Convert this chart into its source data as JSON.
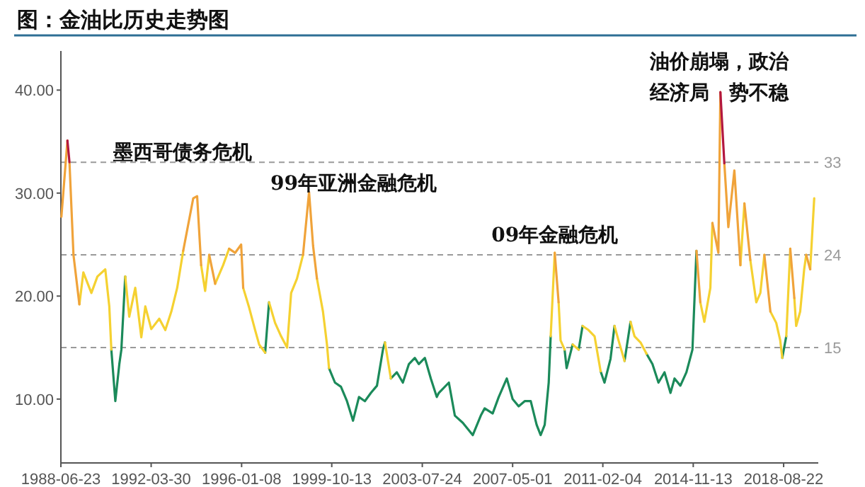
{
  "chart_data": {
    "type": "line",
    "title": "图：金油比历史走势图",
    "annotations": [
      "墨西哥债务危机",
      "99年亚洲金融危机",
      {
        "text": "09年金融危机",
        "x": "2009-02",
        "y": 24.2
      },
      {
        "text": "油价崩塌，政治经济局势不稳",
        "x": "2016-01",
        "y": 39.8
      }
    ],
    "xlim": [
      "1988-06-23",
      "2020-02-01"
    ],
    "xticks": [
      "1988-06-23",
      "1992-03-30",
      "1996-01-08",
      "1999-10-13",
      "2003-07-24",
      "2007-05-01",
      "2011-02-04",
      "2014-11-13",
      "2018-08-22"
    ],
    "ylim": [
      3.8,
      43.8
    ],
    "yticks": [
      {
        "value": 10,
        "label": "10.00"
      },
      {
        "value": 20,
        "label": "20.00"
      },
      {
        "value": 30,
        "label": "30.00"
      },
      {
        "value": 40,
        "label": "40.00"
      }
    ],
    "ref_lines": [
      {
        "axis": "y",
        "value": 33,
        "label": "33",
        "color": "#9a9a9a",
        "line_style": "dashed"
      },
      {
        "axis": "y",
        "value": 24,
        "label": "24",
        "color": "#9a9a9a",
        "line_style": "dashed"
      },
      {
        "axis": "y",
        "value": 15,
        "label": "15",
        "color": "#9a9a9a",
        "line_style": "dashed"
      }
    ],
    "series": [
      {
        "color": "#1b8a5a",
        "x": [
          "1990-08",
          "1990-10",
          "1990-12",
          "1991-01",
          "1991-03",
          null,
          "1997-01",
          "1997-03",
          null,
          "1999-09",
          "1999-12",
          "2000-03",
          "2000-06",
          "2000-09",
          "2000-12",
          "2001-03",
          "2001-06",
          "2001-09",
          "2001-12",
          "2002-01",
          null,
          "2002-04",
          "2002-07",
          "2002-10",
          "2003-01",
          "2003-04",
          "2003-06",
          "2003-09",
          "2003-12",
          "2004-03",
          "2004-04",
          "2004-09",
          "2004-12",
          "2005-04",
          "2005-09",
          "2006-01",
          "2006-03",
          "2006-07",
          "2006-10",
          "2007-02",
          "2007-05",
          "2007-08",
          "2007-11",
          "2008-02",
          "2008-05",
          "2008-07",
          "2008-09",
          "2008-11",
          "2008-12",
          null,
          "2009-07",
          "2009-08",
          "2009-11",
          null,
          "2010-02",
          "2010-04",
          null,
          "2011-01",
          "2011-03",
          "2011-06",
          "2011-08",
          null,
          "2012-01",
          "2012-04",
          null,
          "2012-12",
          "2013-03",
          "2013-06",
          "2013-09",
          "2013-12",
          "2014-02",
          "2014-05",
          "2014-08",
          "2014-11",
          "2015-01",
          null,
          "2018-08",
          "2018-10"
        ],
        "values": [
          14.8,
          9.8,
          13.4,
          14.8,
          21.9,
          null,
          14.5,
          19.4,
          null,
          13,
          11.6,
          11.2,
          9.8,
          7.9,
          10.2,
          9.8,
          10.6,
          11.3,
          14.8,
          15.5,
          null,
          12,
          12.6,
          11.6,
          13.4,
          14,
          13.4,
          14,
          12,
          10.2,
          10.6,
          11.6,
          8.4,
          7.7,
          6.5,
          8.4,
          9.1,
          8.6,
          10.2,
          12,
          10,
          9.3,
          9.8,
          9.8,
          7.5,
          6.5,
          7.5,
          11.6,
          16.1,
          null,
          14.8,
          13,
          15.3,
          null,
          14.8,
          17.1,
          null,
          12.7,
          11.6,
          13.9,
          17.1,
          null,
          13.7,
          17.5,
          null,
          14.4,
          13.4,
          11.6,
          12.6,
          10.6,
          12,
          11.3,
          12.6,
          14.8,
          24.4,
          null,
          14,
          16.1
        ]
      },
      {
        "color": "#f5d131",
        "x": [
          "1989-04",
          "1989-06",
          "1989-10",
          "1990-01",
          "1990-05",
          "1990-07",
          "1990-08",
          null,
          "1991-03",
          "1991-05",
          "1991-08",
          "1991-11",
          "1992-01",
          "1992-04",
          "1992-08",
          "1992-11",
          "1993-02",
          "1993-05",
          "1993-08",
          null,
          "1994-05",
          "1994-07",
          "1994-09",
          null,
          "1994-12",
          "1995-04",
          "1995-07",
          null,
          "1996-02",
          "1996-05",
          "1996-08",
          "1996-10",
          "1997-01",
          null,
          "1997-03",
          "1997-06",
          "1997-09",
          "1997-12",
          "1998-02",
          "1998-05",
          "1998-08",
          null,
          "1999-03",
          "1999-06",
          "1999-08",
          "1999-09",
          null,
          "2002-01",
          "2002-04",
          null,
          "2008-12",
          "2009-02",
          null,
          "2009-04",
          "2009-05",
          "2009-07",
          null,
          "2009-11",
          "2010-02",
          null,
          "2010-04",
          "2010-07",
          "2010-10",
          "2011-01",
          null,
          "2011-08",
          "2011-10",
          "2012-01",
          null,
          "2012-04",
          "2012-06",
          "2012-09",
          "2012-12",
          null,
          "2015-03",
          "2015-05",
          "2015-08",
          "2015-09",
          null,
          "2016-11",
          "2017-01",
          null,
          "2017-04",
          "2017-07",
          "2017-09",
          "2017-11",
          null,
          "2018-02",
          "2018-05",
          "2018-07",
          "2018-08",
          null,
          "2018-10",
          "2018-12",
          null,
          "2019-02",
          "2019-03",
          "2019-05",
          "2019-07",
          "2019-08",
          null,
          "2019-10",
          "2019-12"
        ],
        "values": [
          19.2,
          22.3,
          20.3,
          21.9,
          22.6,
          19,
          14.8,
          null,
          21.9,
          18,
          20.8,
          16,
          19,
          16.8,
          17.8,
          16.7,
          18.5,
          20.8,
          24.4,
          null,
          23,
          20.5,
          24,
          null,
          21.2,
          23,
          24.6,
          null,
          20.8,
          18.9,
          16.7,
          15.3,
          14.5,
          null,
          19.4,
          17.4,
          16.1,
          15,
          20.3,
          21.7,
          24,
          null,
          21.7,
          18.5,
          15.3,
          13,
          null,
          15.5,
          12,
          null,
          16.1,
          24.2,
          null,
          19.4,
          15.7,
          14.8,
          null,
          15.3,
          14.8,
          null,
          17.1,
          16.7,
          16.1,
          12.7,
          null,
          17.1,
          15.7,
          13.7,
          null,
          17.5,
          16.1,
          15.5,
          14.4,
          null,
          19.4,
          17.5,
          20.8,
          27.1,
          null,
          23,
          29,
          null,
          23.5,
          19.4,
          20.3,
          24,
          null,
          18.5,
          17.4,
          15.7,
          14,
          null,
          16.1,
          24.6,
          null,
          19.8,
          17.1,
          18.5,
          22.6,
          24,
          null,
          22.6,
          29.5
        ]
      },
      {
        "color": "#f0a33a",
        "x": [
          "1988-07",
          "1988-10",
          null,
          "1988-11",
          "1989-01",
          "1989-04",
          null,
          "1993-08",
          "1994-01",
          "1994-03",
          "1994-05",
          null,
          "1994-09",
          "1994-12",
          null,
          "1995-07",
          "1995-10",
          "1996-01",
          "1996-02",
          null,
          "1998-08",
          "1998-11",
          "1999-01",
          "1999-03",
          null,
          "2009-02",
          "2009-04",
          null,
          "2015-01",
          "2015-03",
          null,
          "2015-09",
          "2015-12",
          "2016-01",
          null,
          "2016-03",
          "2016-05",
          "2016-08",
          "2016-11",
          null,
          "2017-01",
          "2017-04",
          null,
          "2017-11",
          "2018-02",
          null,
          "2018-12",
          "2019-02",
          null,
          "2019-08",
          "2019-10"
        ],
        "values": [
          27.7,
          35.1,
          null,
          33,
          24,
          19.2,
          null,
          24.4,
          29.5,
          29.7,
          23,
          null,
          24,
          21.2,
          null,
          24.6,
          24.2,
          25,
          20.8,
          null,
          24,
          30.1,
          24.9,
          21.7,
          null,
          24.2,
          19.4,
          null,
          24.4,
          19.4,
          null,
          27.1,
          24.2,
          39.8,
          null,
          32.9,
          26.7,
          32.2,
          23,
          null,
          29,
          23.5,
          null,
          24,
          18.5,
          null,
          24.6,
          19.8,
          null,
          24,
          22.6
        ]
      },
      {
        "color": "#b3173f",
        "x": [
          "1988-10",
          "1988-11",
          null,
          "2016-01",
          "2016-03"
        ],
        "values": [
          35.1,
          33,
          null,
          39.8,
          32.9
        ]
      }
    ]
  }
}
